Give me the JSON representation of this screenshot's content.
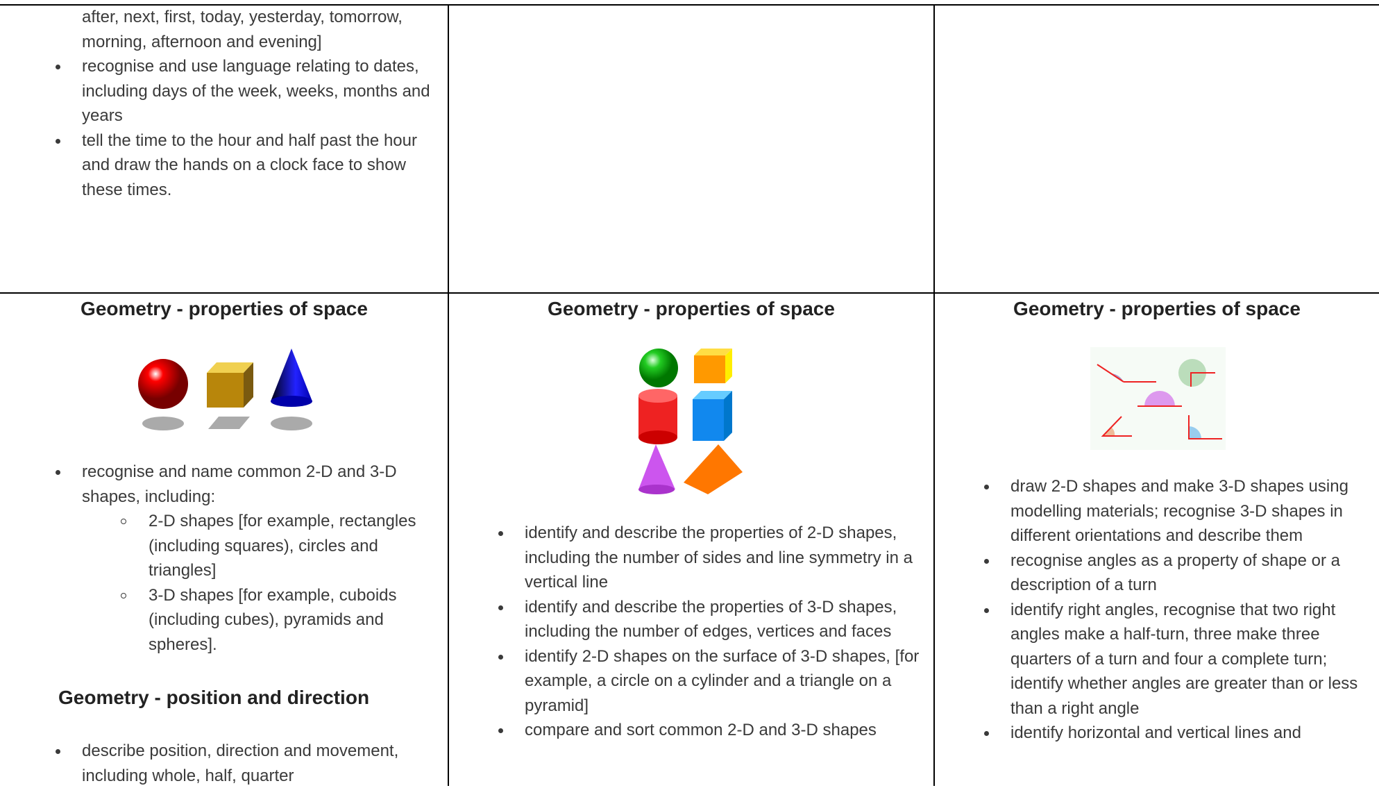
{
  "row1": {
    "col1": {
      "intro": "after, next, first, today, yesterday, tomorrow, morning, afternoon and evening]",
      "bullets": [
        "recognise and use language relating to dates, including days of the week, weeks, months and years",
        "tell the time to the hour and half past the hour and draw the hands on a clock face to show these times."
      ]
    }
  },
  "row2": {
    "col1": {
      "heading": "Geometry - properties of space",
      "bullet": "recognise and name common 2-D and 3-D shapes, including:",
      "sub_bullets": [
        "2-D shapes [for example, rectangles (including squares), circles and triangles]",
        "3-D shapes [for example, cuboids (including cubes), pyramids and spheres]."
      ],
      "heading2": "Geometry - position and direction",
      "bullets2": [
        "describe position, direction and movement, including whole, half, quarter"
      ]
    },
    "col2": {
      "heading": "Geometry - properties of space",
      "bullets": [
        "identify and describe the properties of 2-D shapes, including the number of sides and line symmetry in a vertical line",
        "identify and describe the properties of 3-D shapes, including the number of edges, vertices and faces",
        "identify 2-D shapes on the surface of 3-D shapes, [for example, a circle on a cylinder and a triangle on a pyramid]",
        "compare and sort common 2-D and 3-D shapes"
      ]
    },
    "col3": {
      "heading": "Geometry - properties of space",
      "bullets": [
        "draw 2-D shapes and make 3-D shapes using modelling materials; recognise 3-D shapes in different orientations and describe them",
        "recognise angles as a property of shape or a description of a turn",
        "identify right angles, recognise that two right angles make a half-turn, three make three quarters of a turn and four a complete turn; identify whether angles are greater than or less than a right angle",
        "identify horizontal and vertical lines and"
      ]
    }
  }
}
